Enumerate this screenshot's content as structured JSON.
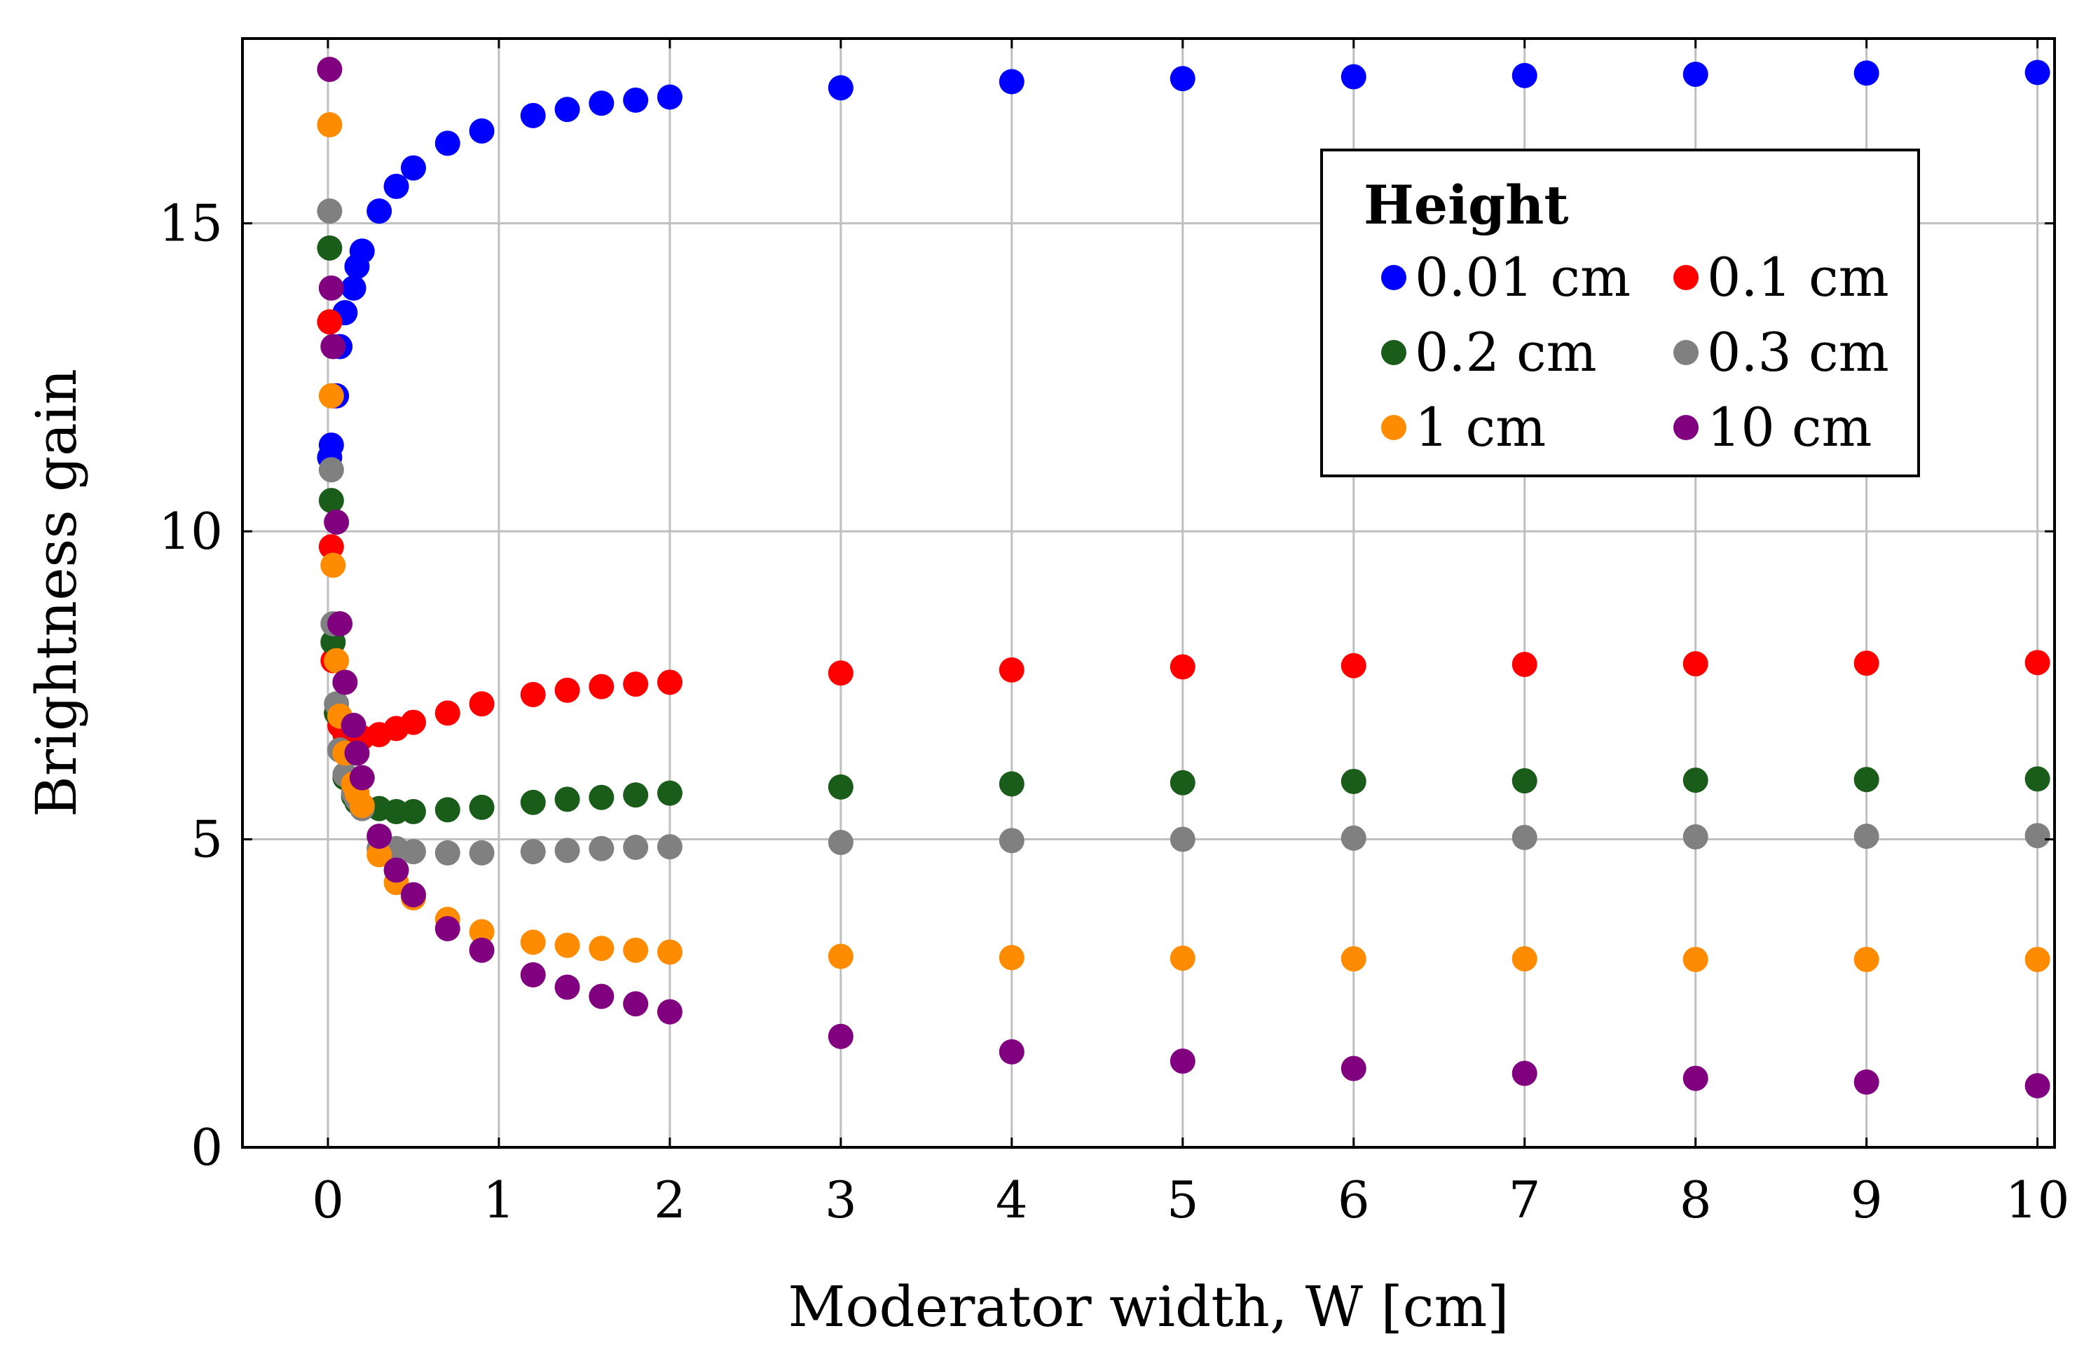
{
  "chart_data": {
    "type": "scatter",
    "xlabel": "Moderator width, W [cm]",
    "ylabel": "Brightness gain",
    "xlim": [
      -0.5,
      10.1
    ],
    "ylim": [
      0,
      18.0
    ],
    "xticks": [
      0,
      1,
      2,
      3,
      4,
      5,
      6,
      7,
      8,
      9,
      10
    ],
    "yticks": [
      0,
      5,
      10,
      15
    ],
    "grid": true,
    "legend": {
      "title": "Height",
      "placement": "top-right",
      "columns": 2
    },
    "x": [
      0.01,
      0.02,
      0.03,
      0.05,
      0.07,
      0.1,
      0.15,
      0.17,
      0.2,
      0.3,
      0.4,
      0.5,
      0.7,
      0.9,
      1.2,
      1.4,
      1.6,
      1.8,
      2,
      3,
      4,
      5,
      6,
      7,
      8,
      9,
      10
    ],
    "series": [
      {
        "name": "0.01 cm",
        "color": "#0000ff",
        "values": [
          11.2,
          11.4,
          12.2,
          12.2,
          13.0,
          13.55,
          13.95,
          14.3,
          14.55,
          15.2,
          15.6,
          15.9,
          16.3,
          16.5,
          16.75,
          16.85,
          16.95,
          17.0,
          17.05,
          17.2,
          17.3,
          17.35,
          17.38,
          17.4,
          17.42,
          17.44,
          17.45
        ]
      },
      {
        "name": "0.1 cm",
        "color": "#ff0000",
        "values": [
          13.4,
          9.75,
          7.9,
          7.05,
          6.85,
          6.7,
          6.6,
          6.6,
          6.65,
          6.7,
          6.8,
          6.9,
          7.05,
          7.2,
          7.35,
          7.42,
          7.48,
          7.52,
          7.55,
          7.7,
          7.75,
          7.8,
          7.82,
          7.84,
          7.85,
          7.86,
          7.87
        ]
      },
      {
        "name": "0.2 cm",
        "color": "#1a5c1a",
        "values": [
          14.6,
          10.5,
          8.2,
          7.05,
          6.45,
          6.0,
          5.7,
          5.6,
          5.55,
          5.5,
          5.45,
          5.45,
          5.48,
          5.52,
          5.6,
          5.65,
          5.68,
          5.72,
          5.75,
          5.85,
          5.9,
          5.92,
          5.94,
          5.95,
          5.96,
          5.97,
          5.98
        ]
      },
      {
        "name": "0.3 cm",
        "color": "#808080",
        "values": [
          15.2,
          11.0,
          8.5,
          7.2,
          6.45,
          6.05,
          5.75,
          5.65,
          5.5,
          4.85,
          4.85,
          4.8,
          4.78,
          4.78,
          4.8,
          4.82,
          4.85,
          4.87,
          4.88,
          4.95,
          4.98,
          5.0,
          5.02,
          5.03,
          5.04,
          5.05,
          5.06
        ]
      },
      {
        "name": "1 cm",
        "color": "#ff8c00",
        "values": [
          16.6,
          12.2,
          9.45,
          7.9,
          7.0,
          6.4,
          5.9,
          5.75,
          5.55,
          4.75,
          4.3,
          4.05,
          3.7,
          3.5,
          3.33,
          3.28,
          3.23,
          3.2,
          3.17,
          3.1,
          3.08,
          3.07,
          3.06,
          3.06,
          3.05,
          3.05,
          3.05
        ]
      },
      {
        "name": "10 cm",
        "color": "#800080",
        "values": [
          17.5,
          13.95,
          13.0,
          10.15,
          8.5,
          7.55,
          6.85,
          6.4,
          6.0,
          5.05,
          4.5,
          4.1,
          3.55,
          3.2,
          2.8,
          2.6,
          2.45,
          2.33,
          2.2,
          1.8,
          1.55,
          1.4,
          1.28,
          1.2,
          1.12,
          1.06,
          1.0
        ]
      }
    ]
  }
}
